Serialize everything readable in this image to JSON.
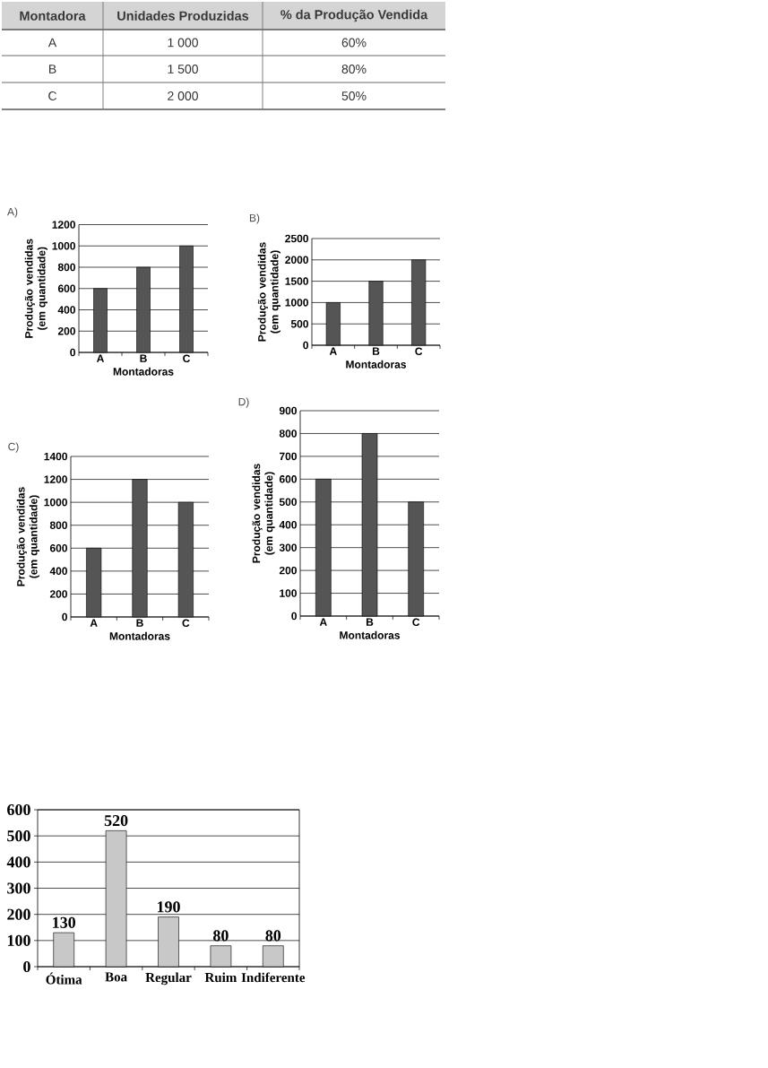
{
  "chart_data": [
    {
      "type": "other",
      "xlabel": "Montadora",
      "categories": [
        "A",
        "B",
        "C"
      ],
      "series": [
        {
          "name": "Unidades Produzidas",
          "values": [
            1000,
            1500,
            2000
          ],
          "value_labels": [
            "1 000",
            "1 500",
            "2 000"
          ]
        },
        {
          "name": "% da Produção Vendida",
          "values": [
            60,
            80,
            50
          ],
          "value_labels": [
            "60%",
            "80%",
            "50%"
          ]
        }
      ]
    },
    {
      "type": "bar",
      "title": "A)",
      "xlabel": "Montadoras",
      "ylabel": "Produção vendidas (em quantidade)",
      "categories": [
        "A",
        "B",
        "C"
      ],
      "values": [
        600,
        800,
        1000
      ],
      "color": "#555555",
      "ylim": [
        0,
        1200
      ],
      "yticks": [
        0,
        200,
        400,
        600,
        800,
        1000,
        1200
      ],
      "grid": "y"
    },
    {
      "type": "bar",
      "title": "B)",
      "xlabel": "Montadoras",
      "ylabel": "Produção vendidas (em quantidade)",
      "categories": [
        "A",
        "B",
        "C"
      ],
      "values": [
        1000,
        1500,
        2000
      ],
      "color": "#555555",
      "ylim": [
        0,
        2500
      ],
      "yticks": [
        0,
        500,
        1000,
        1500,
        2000,
        2500
      ],
      "grid": "y"
    },
    {
      "type": "bar",
      "title": "C)",
      "xlabel": "Montadoras",
      "ylabel": "Produção vendidas (em quantidade)",
      "categories": [
        "A",
        "B",
        "C"
      ],
      "values": [
        600,
        1200,
        1000
      ],
      "color": "#555555",
      "ylim": [
        0,
        1400
      ],
      "yticks": [
        0,
        200,
        400,
        600,
        800,
        1000,
        1200,
        1400
      ],
      "grid": "y"
    },
    {
      "type": "bar",
      "title": "D)",
      "xlabel": "Montadoras",
      "ylabel": "Produção vendidas (em quantidade)",
      "categories": [
        "A",
        "B",
        "C"
      ],
      "values": [
        600,
        800,
        500
      ],
      "color": "#555555",
      "ylim": [
        0,
        900
      ],
      "yticks": [
        0,
        100,
        200,
        300,
        400,
        500,
        600,
        700,
        800,
        900
      ],
      "grid": "y"
    },
    {
      "type": "bar",
      "categories": [
        "Ótima",
        "Boa",
        "Regular",
        "Ruim",
        "Indiferente"
      ],
      "values": [
        130,
        520,
        190,
        80,
        80
      ],
      "color": "#c8c8c8",
      "ylim": [
        0,
        600
      ],
      "yticks": [
        0,
        100,
        200,
        300,
        400,
        500,
        600
      ],
      "grid": "y",
      "data_labels": true
    }
  ]
}
